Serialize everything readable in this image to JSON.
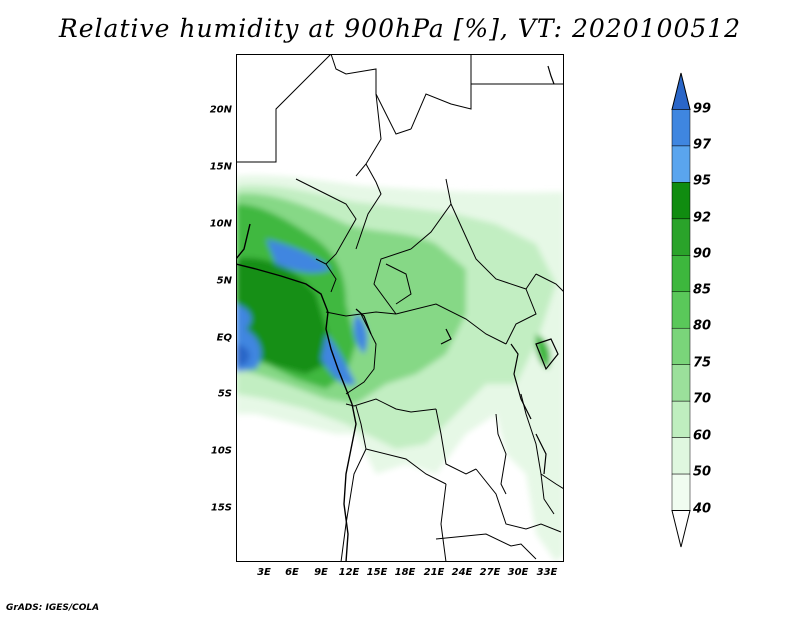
{
  "title": "Relative humidity at 900hPa [%], VT: 2020100512",
  "credit": "GrADS: IGES/COLA",
  "lat_labels": [
    "20N",
    "15N",
    "10N",
    "5N",
    "EQ",
    "5S",
    "10S",
    "15S"
  ],
  "lon_labels": [
    "3E",
    "6E",
    "9E",
    "12E",
    "15E",
    "18E",
    "21E",
    "24E",
    "27E",
    "30E",
    "33E"
  ],
  "colorbar": {
    "levels": [
      "99",
      "97",
      "95",
      "92",
      "90",
      "85",
      "80",
      "75",
      "70",
      "60",
      "50",
      "40"
    ],
    "colors": [
      "#2a66c8",
      "#3f86e0",
      "#5aa5ee",
      "#108c10",
      "#2aa32a",
      "#3db73d",
      "#5ac85a",
      "#7ad57a",
      "#9be09b",
      "#bfeebf",
      "#dff7df",
      "#f0fcf0"
    ]
  }
}
